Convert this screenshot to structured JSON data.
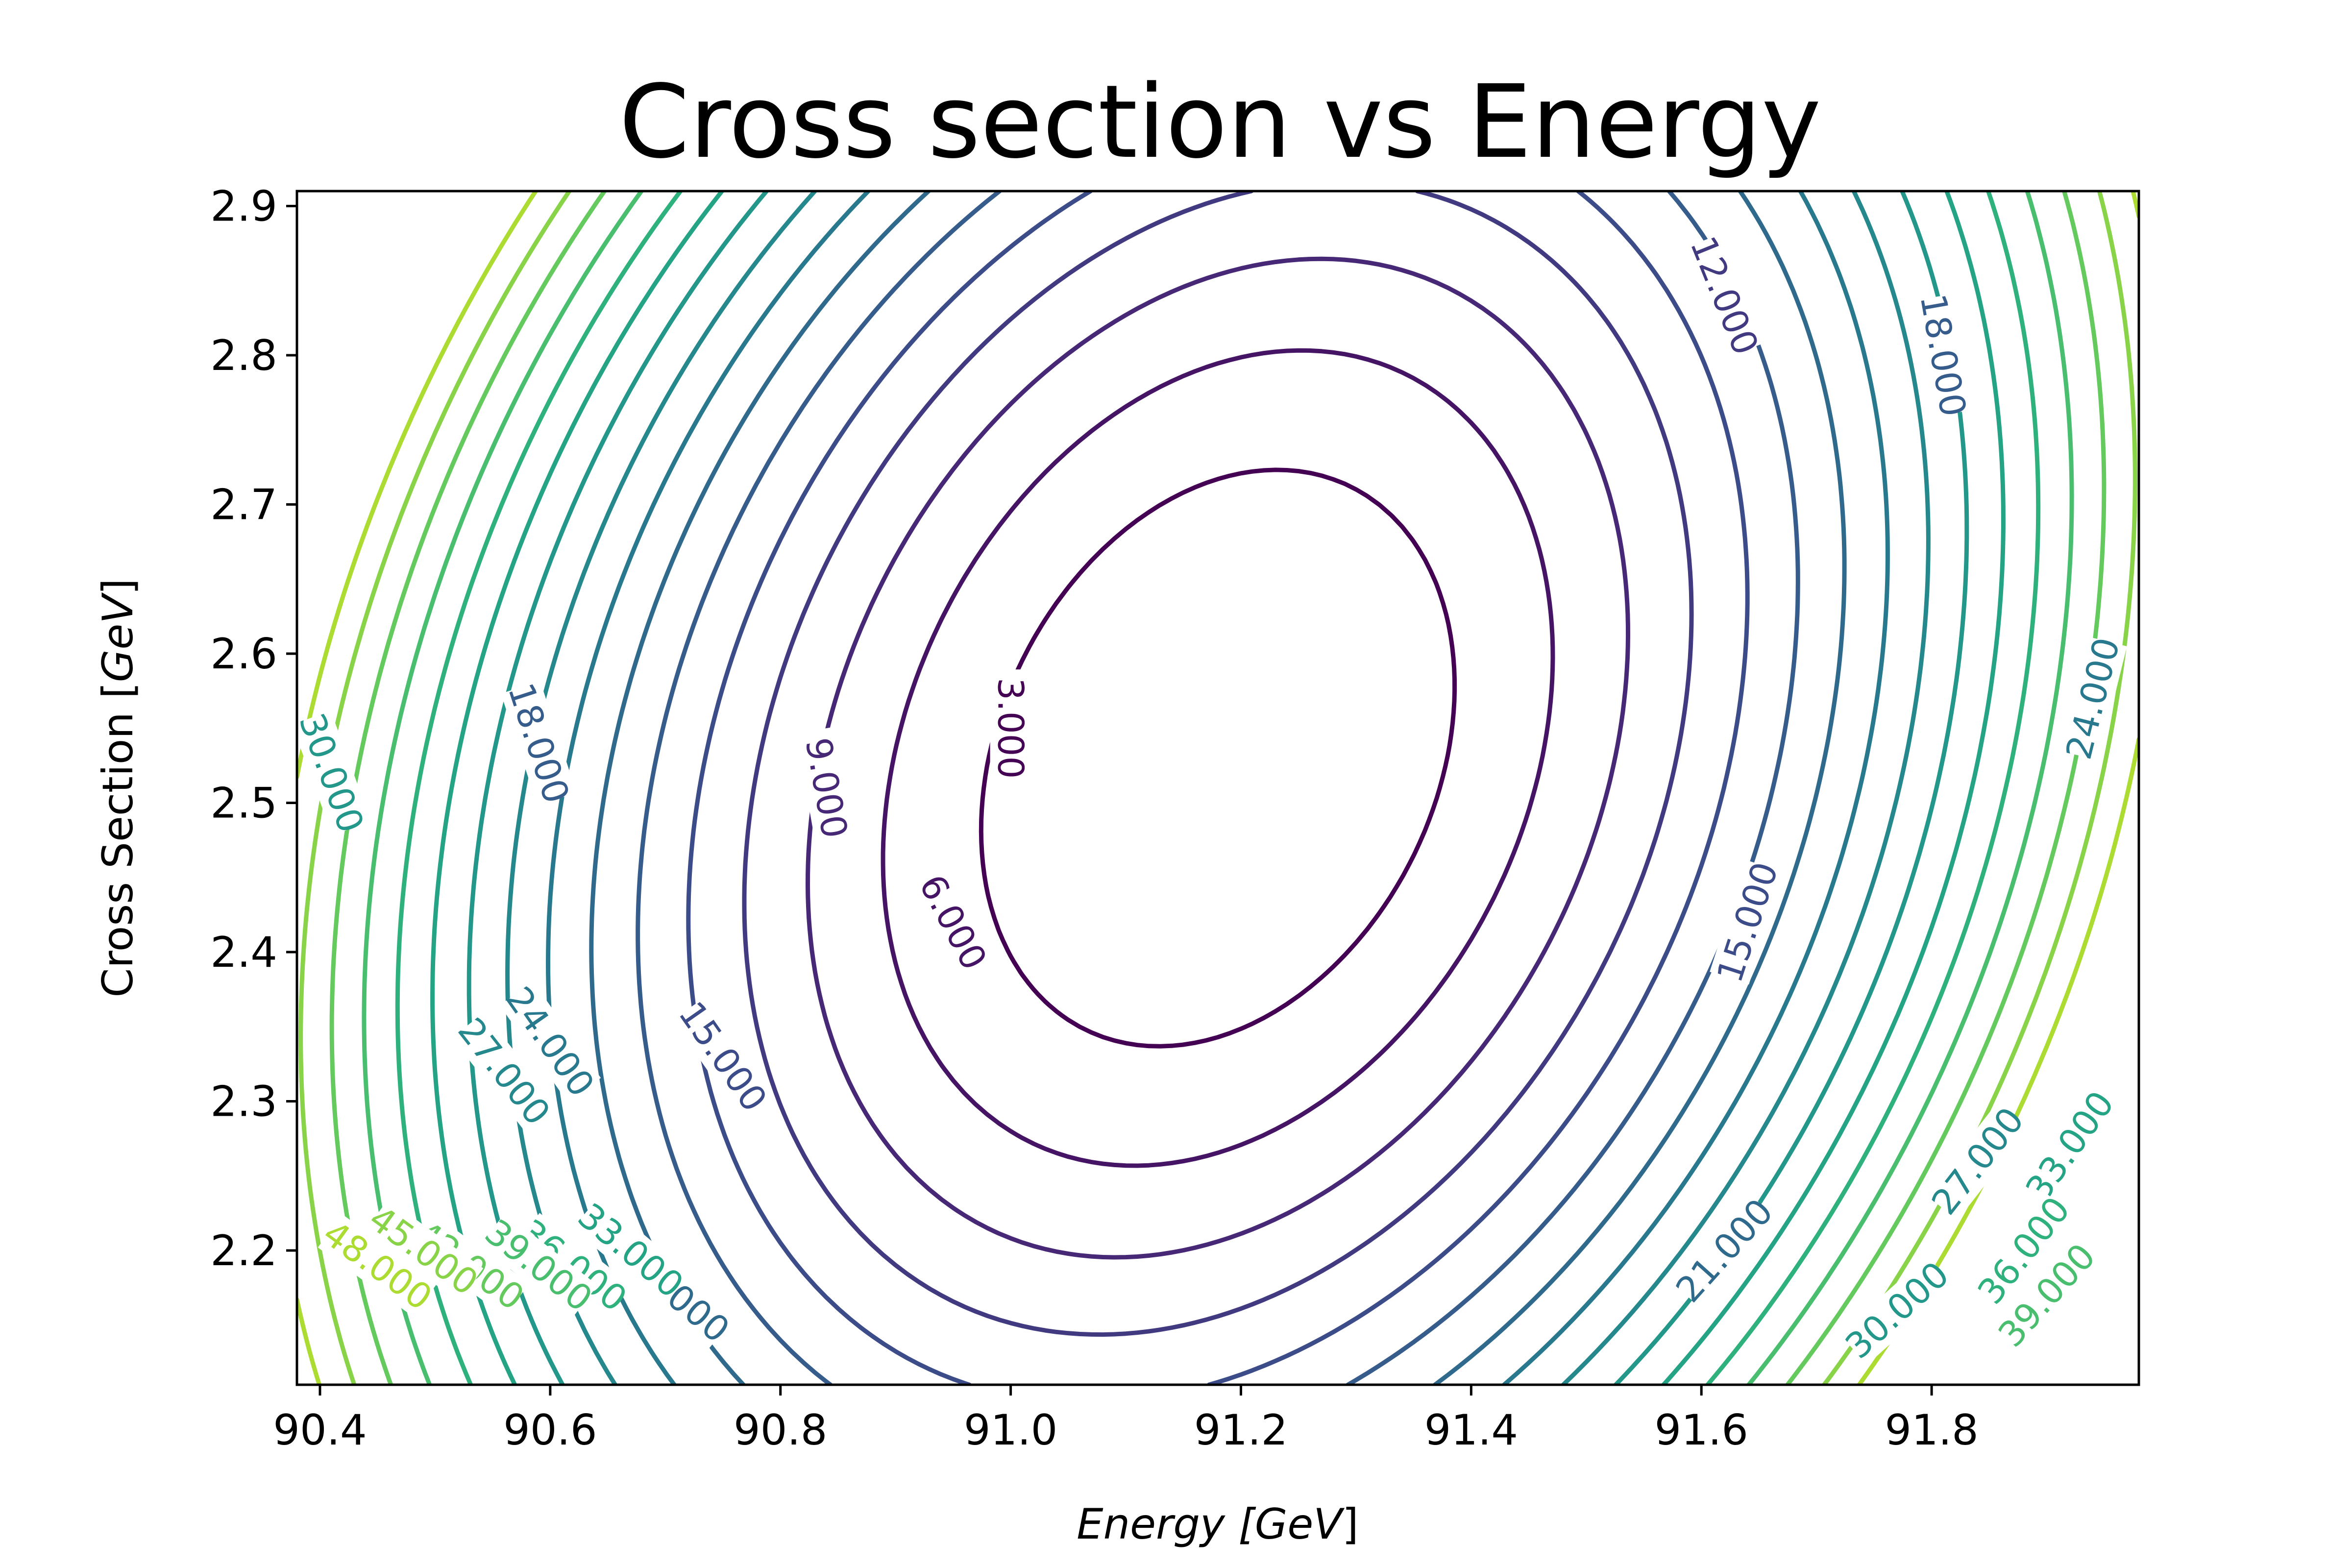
{
  "chart_data": {
    "type": "contour",
    "title": "Cross section vs Energy",
    "xlabel": {
      "main": "Energy [",
      "unit": "GeV",
      "close": "]"
    },
    "ylabel": {
      "main": "Cross Section [",
      "unit": "GeV",
      "close": "]"
    },
    "xlim": [
      90.38,
      91.98
    ],
    "ylim": [
      2.11,
      2.91
    ],
    "xticks": [
      90.4,
      90.6,
      90.8,
      91.0,
      91.2,
      91.4,
      91.6,
      91.8
    ],
    "xtick_labels": [
      "90.4",
      "90.6",
      "90.8",
      "91.0",
      "91.2",
      "91.4",
      "91.6",
      "91.8"
    ],
    "yticks": [
      2.2,
      2.3,
      2.4,
      2.5,
      2.6,
      2.7,
      2.8,
      2.9
    ],
    "ytick_labels": [
      "2.2",
      "2.3",
      "2.4",
      "2.5",
      "2.6",
      "2.7",
      "2.8",
      "2.9"
    ],
    "minimum": {
      "x": 91.18,
      "y": 2.53
    },
    "levels": [
      3,
      6,
      9,
      12,
      15,
      18,
      21,
      24,
      27,
      30,
      33,
      36,
      39,
      42,
      45,
      48
    ],
    "colormap": "viridis",
    "vmax": 54,
    "contour_labels": [
      {
        "text": "3.000",
        "x": 91.0,
        "y": 2.55,
        "level": 3,
        "angle": 90
      },
      {
        "text": "6.000",
        "x": 90.95,
        "y": 2.42,
        "level": 6,
        "angle": 62
      },
      {
        "text": "9.000",
        "x": 90.84,
        "y": 2.51,
        "level": 9,
        "angle": 80
      },
      {
        "text": "12.000",
        "x": 91.62,
        "y": 2.84,
        "level": 12,
        "angle": 68
      },
      {
        "text": "15.000",
        "x": 90.75,
        "y": 2.33,
        "level": 15,
        "angle": 55
      },
      {
        "text": "15.000",
        "x": 91.64,
        "y": 2.42,
        "level": 15,
        "angle": -72
      },
      {
        "text": "18.000",
        "x": 90.59,
        "y": 2.54,
        "level": 18,
        "angle": 72
      },
      {
        "text": "18.000",
        "x": 91.81,
        "y": 2.8,
        "level": 18,
        "angle": 80
      },
      {
        "text": "21.000",
        "x": 90.71,
        "y": 2.17,
        "level": 21,
        "angle": 40
      },
      {
        "text": "21.000",
        "x": 91.62,
        "y": 2.2,
        "level": 21,
        "angle": -48
      },
      {
        "text": "24.000",
        "x": 90.6,
        "y": 2.34,
        "level": 24,
        "angle": 55
      },
      {
        "text": "24.000",
        "x": 91.94,
        "y": 2.57,
        "level": 24,
        "angle": -76
      },
      {
        "text": "27.000",
        "x": 90.56,
        "y": 2.32,
        "level": 27,
        "angle": 52
      },
      {
        "text": "27.000",
        "x": 91.84,
        "y": 2.26,
        "level": 27,
        "angle": -52
      },
      {
        "text": "30.000",
        "x": 90.41,
        "y": 2.52,
        "level": 30,
        "angle": 70
      },
      {
        "text": "30.000",
        "x": 91.77,
        "y": 2.16,
        "level": 30,
        "angle": -42
      },
      {
        "text": "33.000",
        "x": 90.67,
        "y": 2.2,
        "level": 33,
        "angle": 40
      },
      {
        "text": "33.000",
        "x": 91.92,
        "y": 2.27,
        "level": 33,
        "angle": -55
      },
      {
        "text": "36.000",
        "x": 90.62,
        "y": 2.19,
        "level": 36,
        "angle": 38
      },
      {
        "text": "36.000",
        "x": 91.88,
        "y": 2.2,
        "level": 36,
        "angle": -52
      },
      {
        "text": "39.000",
        "x": 90.59,
        "y": 2.19,
        "level": 39,
        "angle": 38
      },
      {
        "text": "39.000",
        "x": 91.9,
        "y": 2.17,
        "level": 39,
        "angle": -48
      },
      {
        "text": "42.000",
        "x": 90.53,
        "y": 2.19,
        "level": 42,
        "angle": 36
      },
      {
        "text": "45.000",
        "x": 90.49,
        "y": 2.2,
        "level": 45,
        "angle": 36
      },
      {
        "text": "48.000",
        "x": 90.45,
        "y": 2.19,
        "level": 48,
        "angle": 36
      }
    ]
  }
}
